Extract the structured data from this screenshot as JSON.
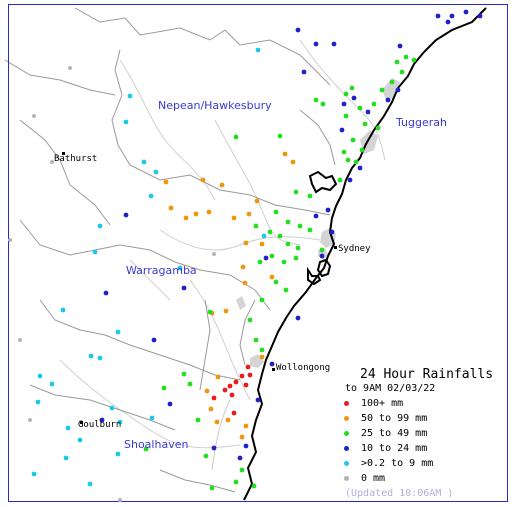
{
  "regions": {
    "nepean": "Nepean/Hawkesbury",
    "tuggerah": "Tuggerah",
    "warragamba": "Warragamba",
    "shoalhaven": "Shoalhaven"
  },
  "towns": {
    "bathurst": "Bathurst",
    "sydney": "Sydney",
    "wollongong": "Wollongong",
    "goulburn": "Goulburn"
  },
  "legend": {
    "title": "24 Hour Rainfalls",
    "subtitle": "to 9AM 02/03/22",
    "classes": [
      {
        "label": "100+ mm",
        "color": "#e81c1c"
      },
      {
        "label": "50  to 99 mm",
        "color": "#f0960a"
      },
      {
        "label": "25  to 49 mm",
        "color": "#22dd22"
      },
      {
        "label": "10  to 24 mm",
        "color": "#2020c8"
      },
      {
        "label": ">0.2 to 9 mm",
        "color": "#1ec8e8"
      },
      {
        "label": "0 mm",
        "color": "#b4b4b4"
      }
    ],
    "updated": "(Updated 10:06AM )"
  },
  "colors": {
    "frame": "#2a2acc",
    "coast": "#000000",
    "catchment": "#9a9a9a",
    "river": "#c8c8c8",
    "urban": "#d2d2d2"
  }
}
